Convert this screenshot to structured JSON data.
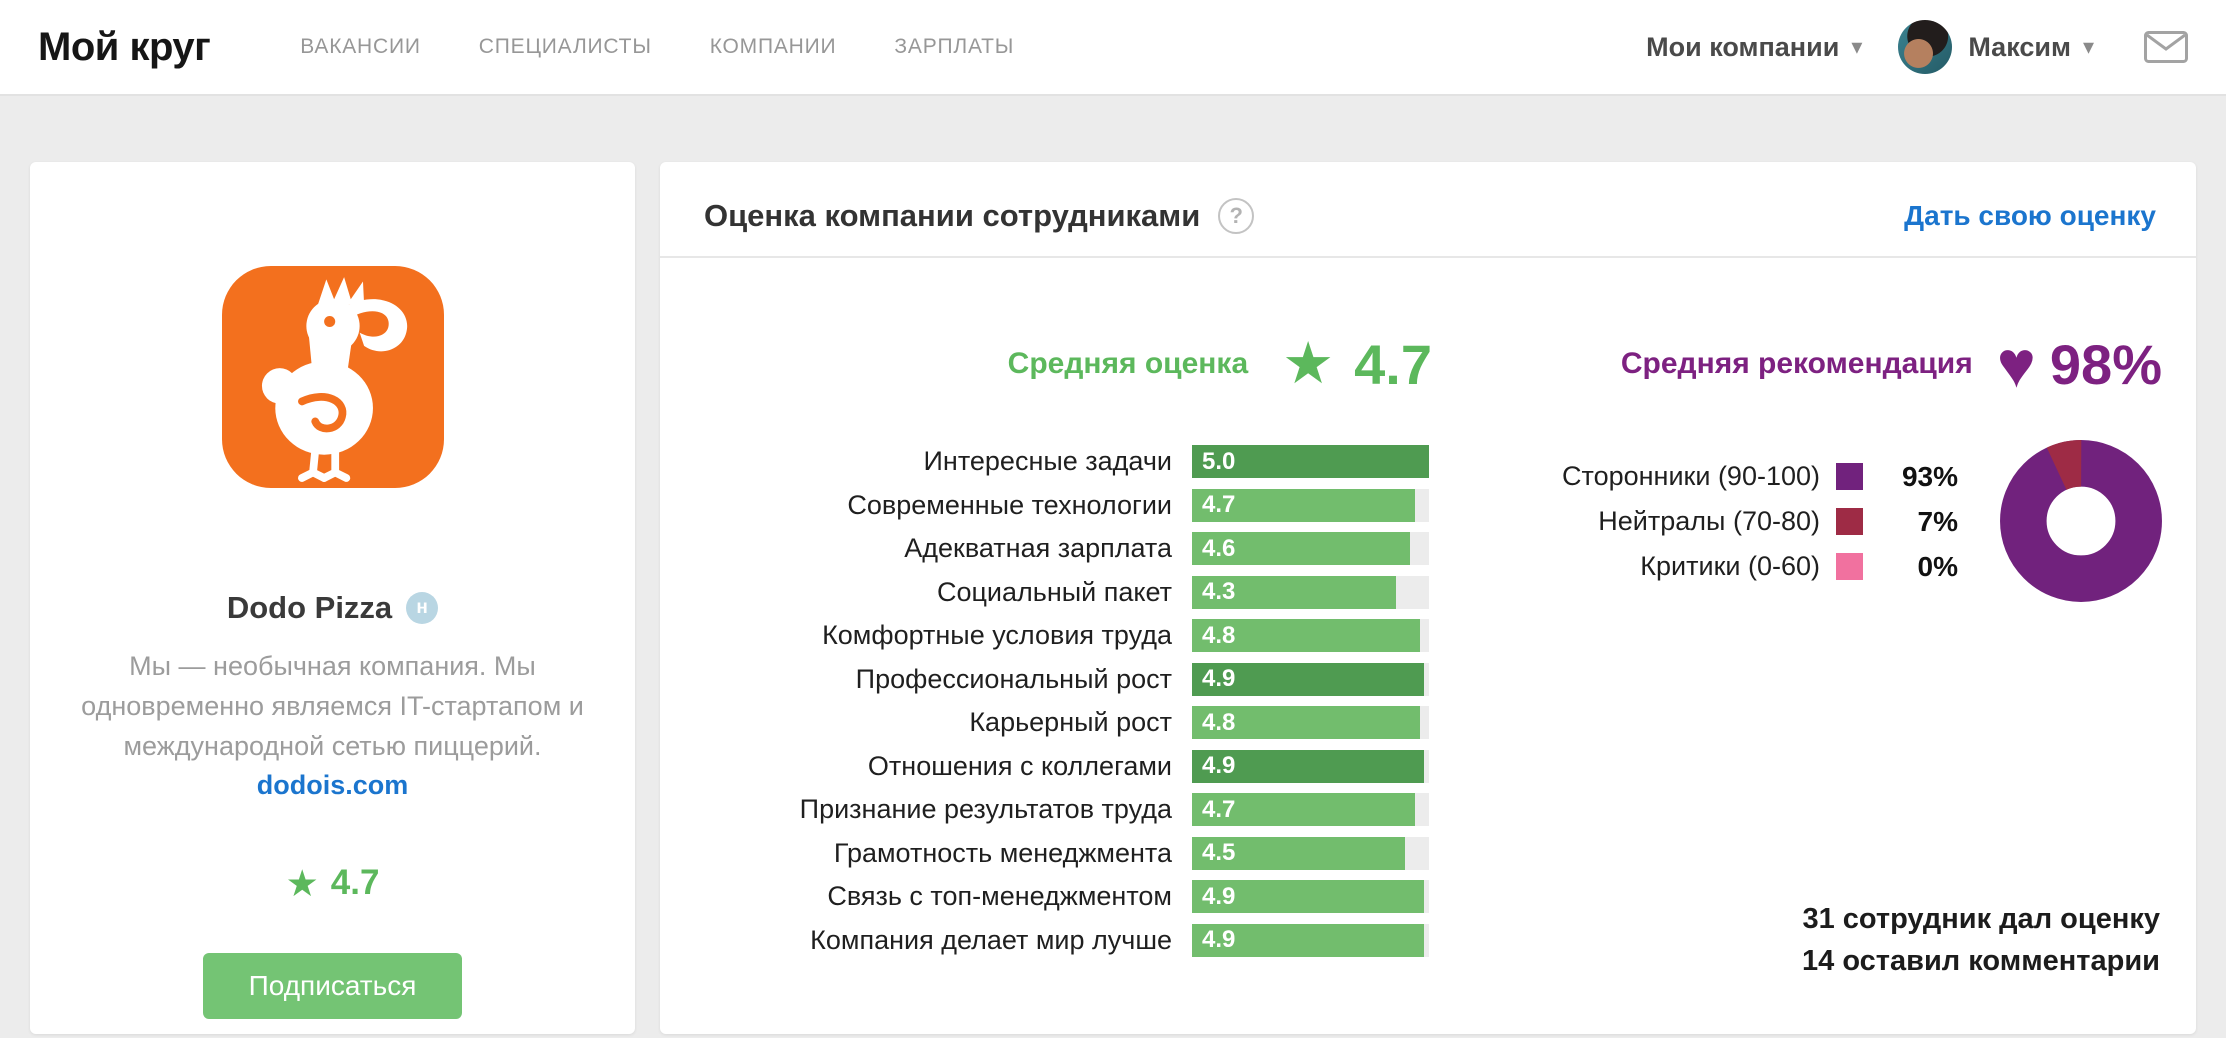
{
  "colors": {
    "green": "#5cb85c",
    "purple": "#7d2181",
    "blue": "#1b75ce",
    "orange": "#f3701e"
  },
  "icons": {
    "chevron_down": "▾",
    "star": "★",
    "heart": "♥",
    "question": "?"
  },
  "header": {
    "logo": "Мой круг",
    "nav": [
      "ВАКАНСИИ",
      "СПЕЦИАЛИСТЫ",
      "КОМПАНИИ",
      "ЗАРПЛАТЫ"
    ],
    "my_companies_label": "Мои компании",
    "user_name": "Максим"
  },
  "company_card": {
    "name": "Dodo Pizza",
    "badge": "н",
    "description": "Мы — необычная компания. Мы одновременно являемся IT-стартапом и международной сетью пиццерий.",
    "website": "dodois.com",
    "rating": "4.7",
    "subscribe_label": "Подписаться"
  },
  "panel": {
    "title": "Оценка компании сотрудниками",
    "give_rating": "Дать свою оценку",
    "avg_label": "Средняя оценка",
    "avg_value": "4.7",
    "rec_label": "Средняя рекомендация",
    "rec_value": "98%",
    "footer_line1": "31 сотрудник дал оценку",
    "footer_line2": "14 оставил комментарии"
  },
  "chart_data": [
    {
      "type": "bar",
      "title": "Оценка компании сотрудниками",
      "orientation": "horizontal",
      "categories": [
        "Интересные задачи",
        "Современные технологии",
        "Адекватная зарплата",
        "Социальный пакет",
        "Комфортные условия труда",
        "Профессиональный рост",
        "Карьерный рост",
        "Отношения с коллегами",
        "Признание результатов труда",
        "Грамотность менеджмента",
        "Связь с топ-менеджментом",
        "Компания делает мир лучше"
      ],
      "values": [
        5.0,
        4.7,
        4.6,
        4.3,
        4.8,
        4.9,
        4.8,
        4.9,
        4.7,
        4.5,
        4.9,
        4.9
      ],
      "value_labels": [
        "5.0",
        "4.7",
        "4.6",
        "4.3",
        "4.8",
        "4.9",
        "4.8",
        "4.9",
        "4.7",
        "4.5",
        "4.9",
        "4.9"
      ],
      "xlim": [
        0,
        5
      ],
      "colors": {
        "normal": "#72bd6d",
        "dark": "#4f9b51"
      },
      "dark_rows": [
        0,
        5,
        7
      ]
    },
    {
      "type": "pie",
      "subtype": "donut",
      "title": "Средняя рекомендация",
      "categories": [
        "Сторонники (90-100)",
        "Нейтралы (70-80)",
        "Критики (0-60)"
      ],
      "values": [
        93,
        7,
        0
      ],
      "value_labels": [
        "93%",
        "7%",
        "0%"
      ],
      "colors": [
        "#71227d",
        "#9e2b45",
        "#f1719f"
      ],
      "legend_position": "left"
    }
  ]
}
